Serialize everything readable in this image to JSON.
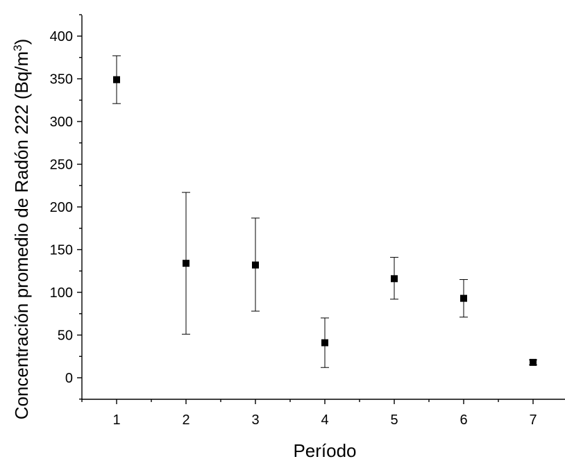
{
  "chart_data": {
    "type": "scatter",
    "xlabel": "Período",
    "ylabel": {
      "main": "Concentración promedio de Radón 222 (Bq/m",
      "superscript": "3",
      "close": ")"
    },
    "xlim": [
      0.5,
      7.5
    ],
    "ylim": [
      -25,
      425
    ],
    "x_ticks": [
      "1",
      "2",
      "3",
      "4",
      "5",
      "6",
      "7"
    ],
    "y_ticks": [
      "0",
      "50",
      "100",
      "150",
      "200",
      "250",
      "300",
      "350",
      "400"
    ],
    "grid": false,
    "marker": "square",
    "color": "#000000",
    "points": [
      {
        "x": 1,
        "y": 349,
        "err_low": 321,
        "err_high": 377
      },
      {
        "x": 2,
        "y": 134,
        "err_low": 51,
        "err_high": 217
      },
      {
        "x": 3,
        "y": 132,
        "err_low": 78,
        "err_high": 187
      },
      {
        "x": 4,
        "y": 41,
        "err_low": 12,
        "err_high": 70
      },
      {
        "x": 5,
        "y": 116,
        "err_low": 92,
        "err_high": 141
      },
      {
        "x": 6,
        "y": 93,
        "err_low": 71,
        "err_high": 115
      },
      {
        "x": 7,
        "y": 18,
        "err_low": 15,
        "err_high": 21
      }
    ]
  }
}
